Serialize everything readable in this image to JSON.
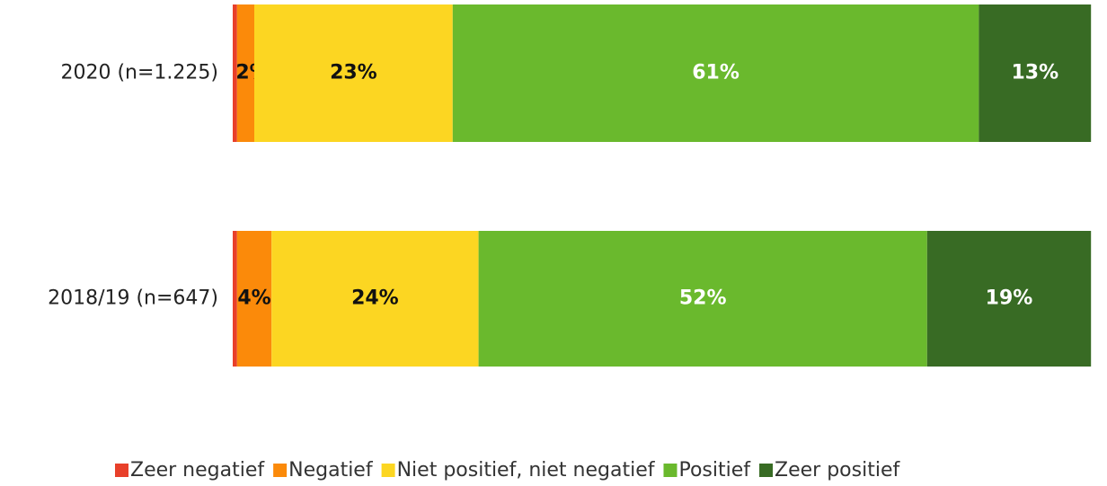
{
  "chart_data": {
    "type": "stacked-bar-horizontal",
    "categories": [
      "2020 (n=1.225)",
      "2018/19 (n=647)"
    ],
    "xlim": [
      0,
      100
    ],
    "series": [
      {
        "name": "Zeer negatief",
        "color": "#e8402a",
        "values": [
          0.5,
          0.5
        ]
      },
      {
        "name": "Negatief",
        "color": "#fb8a0a",
        "label_color": "#111111",
        "values": [
          2,
          4
        ],
        "value_labels": [
          "2%",
          "4%"
        ]
      },
      {
        "name": "Niet positief, niet negatief",
        "color": "#fcd622",
        "label_color": "#111111",
        "values": [
          23,
          24
        ],
        "value_labels": [
          "23%",
          "24%"
        ]
      },
      {
        "name": "Positief",
        "color": "#6ab92d",
        "label_color": "#ffffff",
        "values": [
          61,
          52
        ],
        "value_labels": [
          "61%",
          "52%"
        ]
      },
      {
        "name": "Zeer positief",
        "color": "#386b24",
        "label_color": "#ffffff",
        "values": [
          13,
          19
        ],
        "value_labels": [
          "13%",
          "19%"
        ]
      }
    ],
    "legend": "bottom"
  }
}
